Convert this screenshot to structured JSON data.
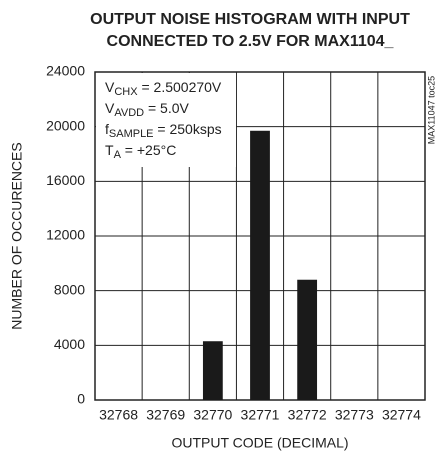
{
  "chart_data": {
    "type": "bar",
    "title": [
      "OUTPUT NOISE HISTOGRAM WITH INPUT",
      "CONNECTED TO 2.5V FOR MAX1104_"
    ],
    "x_label": "OUTPUT CODE (DECIMAL)",
    "y_label": "NUMBER OF OCCURENCES",
    "side_note": "MAX11047 toc25",
    "annotations": [
      {
        "main": "V",
        "sub": "CHX",
        "rest": " = 2.500270V"
      },
      {
        "main": "V",
        "sub": "AVDD",
        "rest": " = 5.0V"
      },
      {
        "main": "f",
        "sub": "SAMPLE",
        "rest": " = 250ksps"
      },
      {
        "main": "T",
        "sub": "A",
        "rest": " = +25°C"
      }
    ],
    "categories": [
      "32768",
      "32769",
      "32770",
      "32771",
      "32772",
      "32773",
      "32774"
    ],
    "values": [
      0,
      0,
      4300,
      19700,
      8800,
      0,
      0
    ],
    "color": "#1a1a1a",
    "ylim": [
      0,
      24000
    ],
    "yticks": [
      0,
      4000,
      8000,
      12000,
      16000,
      20000,
      24000
    ],
    "grid": true
  }
}
